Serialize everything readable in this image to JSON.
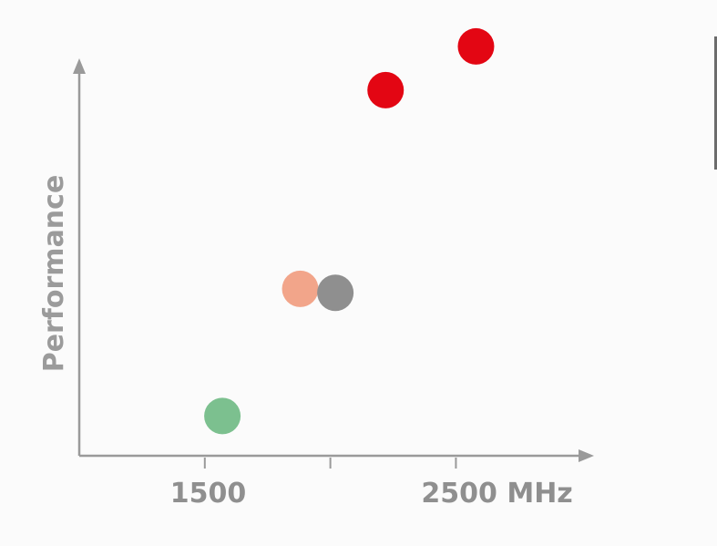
{
  "chart_data": {
    "type": "scatter",
    "title": "",
    "xlabel": "",
    "ylabel": "Performance",
    "x_ticks": [
      {
        "value": 1500,
        "label": "1500"
      },
      {
        "value": 2000,
        "label": ""
      },
      {
        "value": 2500,
        "label": "2500 MHz"
      }
    ],
    "xlim": [
      1000,
      3050
    ],
    "ylim": [
      0,
      100
    ],
    "grid": false,
    "legend": "none",
    "points": [
      {
        "x": 1570,
        "y": 10,
        "color": "#7cc08f"
      },
      {
        "x": 1880,
        "y": 42,
        "color": "#f2a58a"
      },
      {
        "x": 2020,
        "y": 41,
        "color": "#8f8f8f"
      },
      {
        "x": 2220,
        "y": 92,
        "color": "#e30613"
      },
      {
        "x": 2580,
        "y": 103,
        "color": "#e30613"
      }
    ]
  }
}
